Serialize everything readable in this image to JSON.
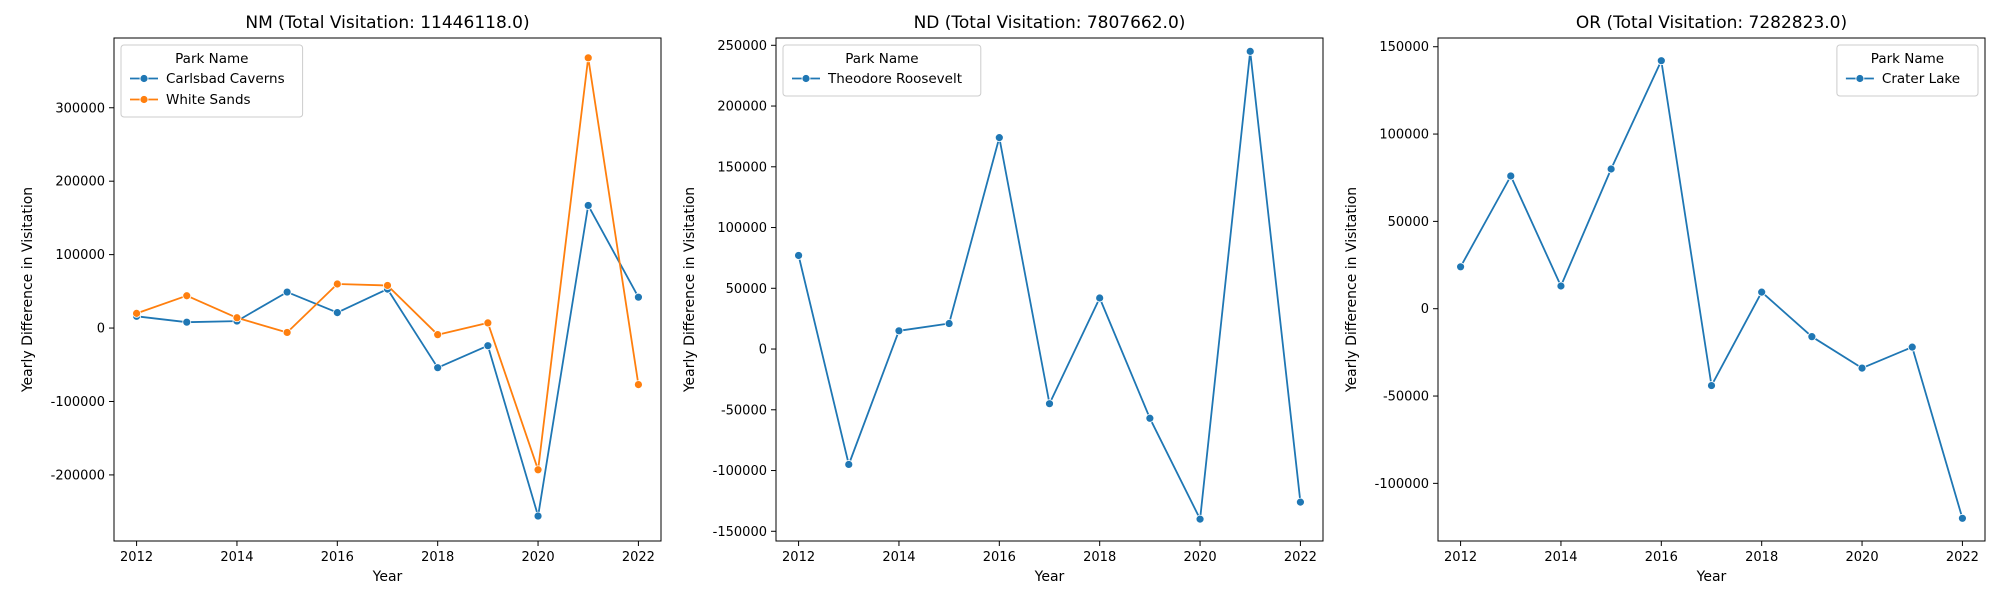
{
  "chart_data": [
    {
      "type": "line",
      "title": "NM (Total Visitation: 11446118.0)",
      "xlabel": "Year",
      "ylabel": "Yearly Difference in Visitation",
      "xlim": [
        2011.55,
        2022.45
      ],
      "ylim": [
        -290000,
        395000
      ],
      "xticks": [
        2012,
        2014,
        2016,
        2018,
        2020,
        2022
      ],
      "yticks": [
        -200000,
        -100000,
        0,
        100000,
        200000,
        300000
      ],
      "legend_title": "Park Name",
      "legend_position": "upper left",
      "grid": false,
      "x": [
        2012,
        2013,
        2014,
        2015,
        2016,
        2017,
        2018,
        2019,
        2020,
        2021,
        2022
      ],
      "series": [
        {
          "name": "Carlsbad Caverns",
          "color": "#1f77b4",
          "values": [
            16000,
            8000,
            9500,
            49000,
            21000,
            53000,
            -54000,
            -24000,
            -256000,
            167000,
            42000
          ]
        },
        {
          "name": "White Sands",
          "color": "#ff7f0e",
          "values": [
            20000,
            44000,
            14000,
            -6000,
            60000,
            58000,
            -9000,
            7000,
            -193000,
            368000,
            -77000
          ]
        }
      ]
    },
    {
      "type": "line",
      "title": "ND (Total Visitation: 7807662.0)",
      "xlabel": "Year",
      "ylabel": "Yearly Difference in Visitation",
      "xlim": [
        2011.55,
        2022.45
      ],
      "ylim": [
        -158000,
        256000
      ],
      "xticks": [
        2012,
        2014,
        2016,
        2018,
        2020,
        2022
      ],
      "yticks": [
        -150000,
        -100000,
        -50000,
        0,
        50000,
        100000,
        150000,
        200000,
        250000
      ],
      "legend_title": "Park Name",
      "legend_position": "upper left",
      "grid": false,
      "x": [
        2012,
        2013,
        2014,
        2015,
        2016,
        2017,
        2018,
        2019,
        2020,
        2021,
        2022
      ],
      "series": [
        {
          "name": "Theodore Roosevelt",
          "color": "#1f77b4",
          "values": [
            77000,
            -95000,
            15000,
            21000,
            174000,
            -45000,
            42000,
            -57000,
            -140000,
            245000,
            -126000
          ]
        }
      ]
    },
    {
      "type": "line",
      "title": "OR (Total Visitation: 7282823.0)",
      "xlabel": "Year",
      "ylabel": "Yearly Difference in Visitation",
      "xlim": [
        2011.55,
        2022.45
      ],
      "ylim": [
        -133000,
        155000
      ],
      "xticks": [
        2012,
        2014,
        2016,
        2018,
        2020,
        2022
      ],
      "yticks": [
        -100000,
        -50000,
        0,
        50000,
        100000,
        150000
      ],
      "legend_title": "Park Name",
      "legend_position": "upper right",
      "grid": false,
      "x": [
        2012,
        2013,
        2014,
        2015,
        2016,
        2017,
        2018,
        2019,
        2020,
        2021,
        2022
      ],
      "series": [
        {
          "name": "Crater Lake",
          "color": "#1f77b4",
          "values": [
            24000,
            76000,
            13000,
            80000,
            142000,
            -44000,
            9500,
            -16000,
            -34000,
            -22000,
            -120000
          ]
        }
      ]
    }
  ]
}
